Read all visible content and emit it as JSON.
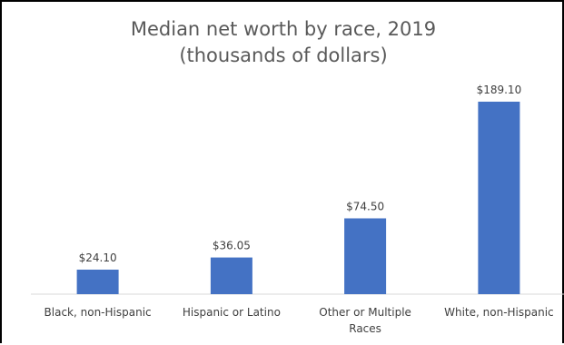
{
  "chart_data": {
    "type": "bar",
    "title": "Median net worth by race, 2019 (thousands of dollars)",
    "categories": [
      "Black, non-Hispanic",
      "Hispanic or Latino",
      "Other or Multiple Races",
      "White, non-Hispanic"
    ],
    "category_lines": [
      [
        "Black, non-Hispanic"
      ],
      [
        "Hispanic or Latino"
      ],
      [
        "Other or Multiple",
        "Races"
      ],
      [
        "White, non-Hispanic"
      ]
    ],
    "values": [
      24.1,
      36.05,
      74.5,
      189.1
    ],
    "data_labels": [
      "$24.10",
      "$36.05",
      "$74.50",
      "$189.10"
    ],
    "xlabel": "",
    "ylabel": "",
    "ylim": [
      0,
      200
    ],
    "grid": false,
    "legend": "none",
    "bar_color": "#4472c4"
  }
}
